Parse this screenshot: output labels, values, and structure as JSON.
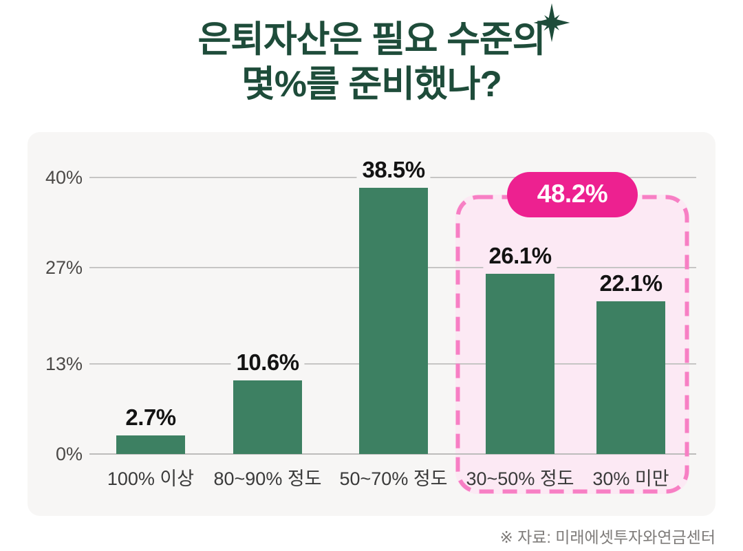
{
  "title": {
    "line1": "은퇴자산은 필요 수준의",
    "line2": "몇%를 준비했나?"
  },
  "chart_data": {
    "type": "bar",
    "title": "은퇴자산은 필요 수준의 몇%를 준비했나?",
    "categories": [
      "100% 이상",
      "80~90% 정도",
      "50~70% 정도",
      "30~50% 정도",
      "30% 미만"
    ],
    "values": [
      2.7,
      10.6,
      38.5,
      26.1,
      22.1
    ],
    "value_labels": [
      "2.7%",
      "10.6%",
      "38.5%",
      "26.1%",
      "22.1%"
    ],
    "xlabel": "",
    "ylabel": "",
    "y_ticks": [
      "0%",
      "13%",
      "27%",
      "40%"
    ],
    "y_tick_values": [
      0,
      13,
      27,
      40
    ],
    "ylim": [
      0,
      40
    ],
    "grid": true,
    "legend": "none",
    "highlight": {
      "label": "48.2%",
      "start_index": 3,
      "count": 2,
      "note": "sum of last two categories"
    }
  },
  "footer": {
    "source": "※ 자료: 미래에셋투자와연금센터"
  },
  "colors": {
    "title_green": "#1e4c3a",
    "bar_green": "#3d8062",
    "card_bg": "#f7f6f5",
    "highlight_fill": "#fce9f4",
    "highlight_border": "#f77fc4",
    "badge_magenta": "#ed2190",
    "gridline": "#c6c5c4",
    "tick_text": "#4b4947",
    "footer_text": "#7e7b79"
  }
}
